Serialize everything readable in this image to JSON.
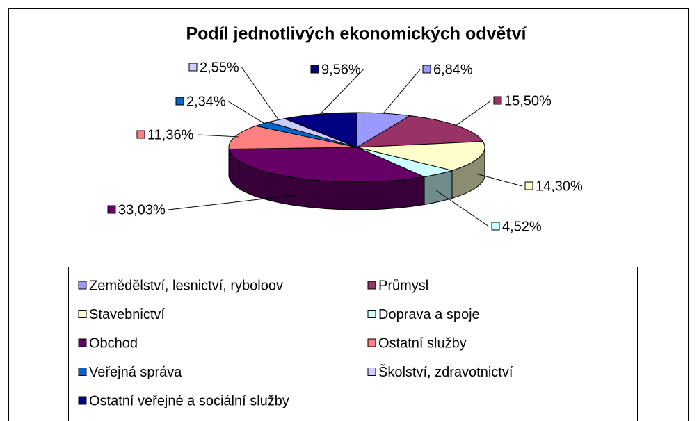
{
  "chart_data": {
    "type": "pie3d",
    "title": "Podíl jednotlivých ekonomických odvětví",
    "categories": [
      "Zemědělství, lesnictví, ryboloov",
      "Průmysl",
      "Stavebnictví",
      "Doprava a spoje",
      "Obchod",
      "Ostatní služby",
      "Veřejná správa",
      "Školství, zdravotnictví",
      "Ostatní veřejné a sociální služby"
    ],
    "values": [
      6.84,
      15.5,
      14.3,
      4.52,
      33.03,
      11.36,
      2.34,
      2.55,
      9.56
    ],
    "value_labels": [
      "6,84%",
      "15,50%",
      "14,30%",
      "4,52%",
      "33,03%",
      "11,36%",
      "2,34%",
      "2,55%",
      "9,56%"
    ],
    "colors": [
      "#9999ff",
      "#993366",
      "#ffffcc",
      "#ccffff",
      "#660066",
      "#ff8080",
      "#0066cc",
      "#ccccff",
      "#000080"
    ],
    "legend": "bottom"
  }
}
